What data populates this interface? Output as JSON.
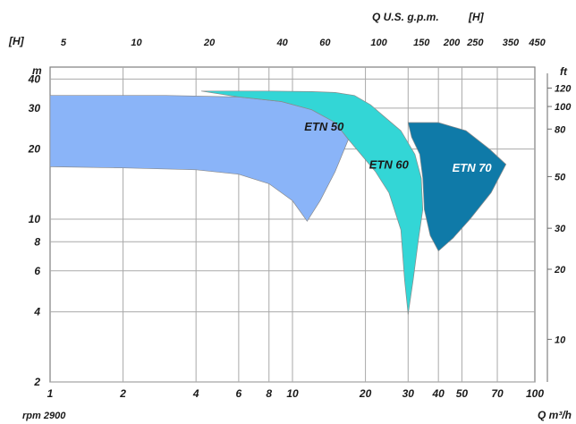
{
  "chart_data": {
    "type": "area",
    "x_scale": "log",
    "y_scale": "log",
    "xlim": [
      1,
      100
    ],
    "ylim": [
      2,
      45
    ],
    "grid": true,
    "x_ticks": [
      1,
      2,
      4,
      6,
      8,
      10,
      20,
      30,
      40,
      50,
      70,
      100
    ],
    "y_ticks": [
      2,
      4,
      6,
      8,
      10,
      20,
      30,
      40
    ],
    "top_axis_ticks": [
      5,
      10,
      20,
      40,
      60,
      100,
      150,
      200,
      250,
      350,
      450
    ],
    "right_axis_ticks": [
      10,
      20,
      30,
      50,
      80,
      100,
      120
    ],
    "header_top": "[H]",
    "header_top_units": "Q U.S. g.p.m.",
    "header_top_right": "[H]",
    "y_unit": "m",
    "right_unit": "ft",
    "x_unit": "Q m³/h",
    "footnote": "rpm 2900",
    "series": [
      {
        "name": "ETN 50",
        "color": "#8ab4f8",
        "label_at": [
          13.5,
          24
        ],
        "polygon": [
          [
            1,
            34
          ],
          [
            3,
            34
          ],
          [
            6,
            33.5
          ],
          [
            9,
            32
          ],
          [
            12,
            29.5
          ],
          [
            15,
            26
          ],
          [
            17,
            22
          ],
          [
            15,
            16
          ],
          [
            13,
            12
          ],
          [
            11.5,
            9.8
          ],
          [
            10,
            12
          ],
          [
            8,
            14.2
          ],
          [
            6,
            15.6
          ],
          [
            4,
            16.3
          ],
          [
            2,
            16.6
          ],
          [
            1,
            16.8
          ]
        ]
      },
      {
        "name": "ETN 60",
        "color": "#33d6d6",
        "label_at": [
          25,
          16.5
        ],
        "polygon": [
          [
            4.2,
            35.5
          ],
          [
            8,
            35.5
          ],
          [
            12,
            35.3
          ],
          [
            15,
            35
          ],
          [
            18,
            34
          ],
          [
            21,
            31
          ],
          [
            24,
            27.5
          ],
          [
            28,
            24
          ],
          [
            32,
            19
          ],
          [
            34,
            15
          ],
          [
            34.5,
            11
          ],
          [
            33,
            8
          ],
          [
            31.5,
            5.5
          ],
          [
            30,
            3.9
          ],
          [
            29,
            5.5
          ],
          [
            28,
            9
          ],
          [
            25,
            13
          ],
          [
            22,
            16
          ],
          [
            20,
            18
          ],
          [
            18,
            20.5
          ],
          [
            17,
            22
          ],
          [
            15,
            26
          ],
          [
            12,
            29.5
          ],
          [
            9,
            32
          ],
          [
            6,
            33.5
          ]
        ]
      },
      {
        "name": "ETN 70",
        "color": "#0f7aa8",
        "label_at": [
          55,
          16
        ],
        "polygon": [
          [
            30,
            26
          ],
          [
            40,
            26
          ],
          [
            52,
            24
          ],
          [
            65,
            20
          ],
          [
            76,
            17.2
          ],
          [
            66,
            13
          ],
          [
            54,
            10
          ],
          [
            46,
            8.3
          ],
          [
            40,
            7.3
          ],
          [
            37,
            8.5
          ],
          [
            35,
            11
          ],
          [
            34.5,
            15
          ],
          [
            33.5,
            19
          ],
          [
            31,
            22.5
          ]
        ]
      }
    ]
  }
}
